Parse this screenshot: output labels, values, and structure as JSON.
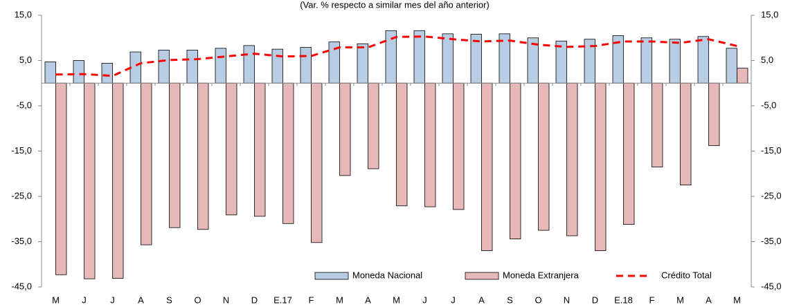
{
  "chart_data": {
    "type": "bar_line",
    "subtitle": "(Var. % respecto a similar mes del año anterior)",
    "categories": [
      "M",
      "J",
      "J",
      "A",
      "S",
      "O",
      "N",
      "D",
      "E.17",
      "F",
      "M",
      "A",
      "M",
      "J",
      "J",
      "A",
      "S",
      "O",
      "N",
      "D",
      "E.18",
      "F",
      "M",
      "A",
      "M"
    ],
    "series": [
      {
        "name": "Moneda Nacional",
        "type": "bar",
        "color": "#b8cce4",
        "values": [
          4.7,
          5.0,
          4.4,
          6.9,
          7.3,
          7.3,
          7.7,
          8.3,
          7.5,
          7.9,
          9.1,
          8.7,
          11.6,
          11.6,
          10.9,
          10.8,
          10.9,
          10.0,
          9.3,
          9.7,
          10.5,
          10.0,
          9.7,
          10.3,
          7.7
        ]
      },
      {
        "name": "Moneda Extranjera",
        "type": "bar",
        "color": "#e6b9b8",
        "values": [
          -42.3,
          -43.2,
          -43.1,
          -35.7,
          -31.9,
          -32.3,
          -29.1,
          -29.4,
          -31.0,
          -35.2,
          -20.4,
          -18.9,
          -27.1,
          -27.3,
          -27.9,
          -37.0,
          -34.4,
          -32.5,
          -33.7,
          -37.0,
          -31.2,
          -18.5,
          -22.5,
          -13.8,
          3.3
        ]
      },
      {
        "name": "Crédito Total",
        "type": "line",
        "color": "#ff0000",
        "values": [
          1.9,
          2.0,
          1.6,
          4.4,
          5.1,
          5.3,
          5.9,
          6.5,
          5.9,
          6.0,
          7.9,
          7.9,
          10.2,
          10.3,
          9.7,
          9.2,
          9.4,
          8.5,
          8.0,
          8.2,
          9.2,
          9.2,
          8.9,
          9.7,
          8.2
        ]
      }
    ],
    "ylim": [
      -45,
      15
    ],
    "yticks": [
      {
        "value": -45,
        "label": "-45,0"
      },
      {
        "value": -35,
        "label": "-35,0"
      },
      {
        "value": -25,
        "label": "-25,0"
      },
      {
        "value": -15,
        "label": "-15,0"
      },
      {
        "value": -5,
        "label": "-5,0"
      },
      {
        "value": 5,
        "label": "5,0"
      },
      {
        "value": 15,
        "label": "15,0"
      }
    ],
    "y2lim": [
      -45,
      15
    ],
    "y2ticks": [
      {
        "value": -45,
        "label": "-45,0"
      },
      {
        "value": -35,
        "label": "-35,0"
      },
      {
        "value": -25,
        "label": "-25,0"
      },
      {
        "value": -15,
        "label": "-15,0"
      },
      {
        "value": -5,
        "label": "-5,0"
      },
      {
        "value": 5,
        "label": "5,0"
      },
      {
        "value": 15,
        "label": "15,0"
      }
    ],
    "legend": "bottom-right"
  }
}
